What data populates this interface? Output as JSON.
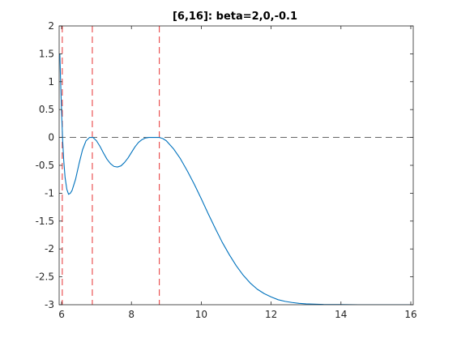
{
  "chart_data": {
    "type": "line",
    "title": "[6,16]: beta=2,0,-0.1",
    "xlabel": "",
    "ylabel": "",
    "xlim": [
      5.93,
      16.07
    ],
    "ylim": [
      -3,
      2
    ],
    "x_ticks": [
      6,
      8,
      10,
      12,
      14,
      16
    ],
    "x_tick_labels": [
      "6",
      "8",
      "10",
      "12",
      "14",
      "16"
    ],
    "y_ticks": [
      2,
      1.5,
      1,
      0.5,
      0,
      -0.5,
      -1,
      -1.5,
      -2,
      -2.5,
      -3
    ],
    "y_tick_labels": [
      "2",
      "1.5",
      "1",
      "0.5",
      "0",
      "-0.5",
      "-1",
      "-1.5",
      "-2",
      "-2.5",
      "-3"
    ],
    "grid": false,
    "legend": "none",
    "series": [
      {
        "color": "#0072bd",
        "x": [
          5.95,
          5.97,
          6.0,
          6.03,
          6.06,
          6.1,
          6.15,
          6.2,
          6.25,
          6.3,
          6.4,
          6.5,
          6.6,
          6.7,
          6.8,
          6.9,
          7.0,
          7.1,
          7.2,
          7.3,
          7.4,
          7.5,
          7.6,
          7.7,
          7.8,
          7.9,
          8.0,
          8.1,
          8.2,
          8.3,
          8.4,
          8.5,
          8.6,
          8.7,
          8.8,
          8.9,
          9.0,
          9.2,
          9.4,
          9.6,
          9.8,
          10.0,
          10.2,
          10.4,
          10.6,
          10.8,
          11.0,
          11.2,
          11.4,
          11.6,
          11.8,
          12.0,
          12.2,
          12.4,
          12.6,
          12.8,
          13.0,
          13.5,
          14.0,
          14.5,
          15.0,
          15.5,
          16.0
        ],
        "y": [
          1.5,
          1.05,
          0.45,
          -0.05,
          -0.4,
          -0.72,
          -0.93,
          -1.02,
          -1.0,
          -0.95,
          -0.75,
          -0.47,
          -0.22,
          -0.06,
          0.0,
          0.0,
          -0.06,
          -0.16,
          -0.28,
          -0.39,
          -0.47,
          -0.52,
          -0.53,
          -0.51,
          -0.45,
          -0.37,
          -0.27,
          -0.17,
          -0.09,
          -0.04,
          -0.01,
          0.0,
          0.0,
          0.0,
          0.0,
          -0.02,
          -0.06,
          -0.2,
          -0.38,
          -0.6,
          -0.84,
          -1.1,
          -1.37,
          -1.63,
          -1.88,
          -2.1,
          -2.3,
          -2.47,
          -2.61,
          -2.72,
          -2.8,
          -2.86,
          -2.91,
          -2.94,
          -2.96,
          -2.975,
          -2.985,
          -2.995,
          -2.998,
          -3.0,
          -3.0,
          -3.0,
          -3.0
        ]
      }
    ],
    "reference_lines": {
      "horizontal": [
        {
          "y": 0,
          "color": "#333333",
          "style": "dashed"
        }
      ],
      "vertical": [
        {
          "x": 6.02,
          "color": "#e31a1c",
          "style": "dashed"
        },
        {
          "x": 6.88,
          "color": "#e31a1c",
          "style": "dashed"
        },
        {
          "x": 8.8,
          "color": "#e31a1c",
          "style": "dashed"
        }
      ]
    }
  }
}
